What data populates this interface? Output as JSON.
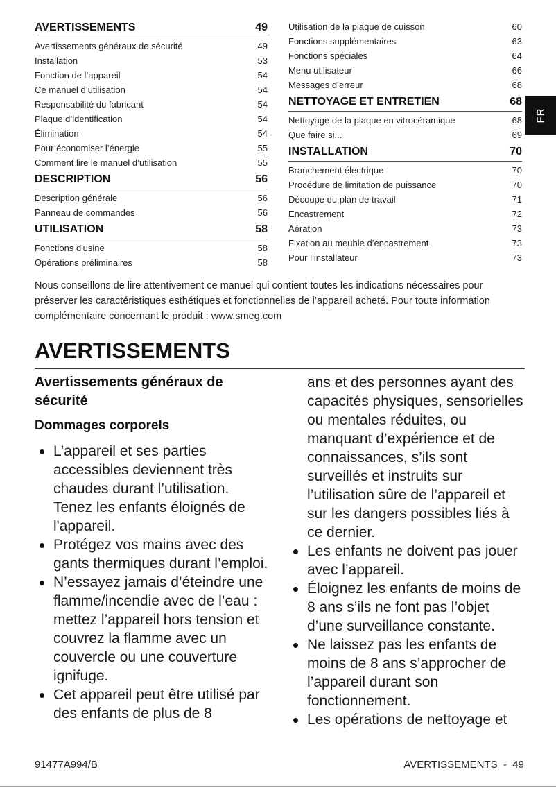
{
  "toc": {
    "left": [
      {
        "type": "head",
        "label": "AVERTISSEMENTS",
        "page": "49"
      },
      {
        "type": "row",
        "label": "Avertissements généraux de sécurité",
        "page": "49"
      },
      {
        "type": "row",
        "label": "Installation",
        "page": "53"
      },
      {
        "type": "row",
        "label": "Fonction de l’appareil",
        "page": "54"
      },
      {
        "type": "row",
        "label": "Ce manuel d’utilisation",
        "page": "54"
      },
      {
        "type": "row",
        "label": "Responsabilité du fabricant",
        "page": "54"
      },
      {
        "type": "row",
        "label": "Plaque d’identification",
        "page": "54"
      },
      {
        "type": "row",
        "label": "Élimination",
        "page": "54"
      },
      {
        "type": "row",
        "label": "Pour économiser l’énergie",
        "page": "55"
      },
      {
        "type": "row",
        "label": "Comment lire le manuel d’utilisation",
        "page": "55"
      },
      {
        "type": "head",
        "label": "DESCRIPTION",
        "page": "56"
      },
      {
        "type": "row",
        "label": "Description générale",
        "page": "56"
      },
      {
        "type": "row",
        "label": "Panneau de commandes",
        "page": "56"
      },
      {
        "type": "head",
        "label": "UTILISATION",
        "page": "58"
      },
      {
        "type": "row",
        "label": "Fonctions d'usine",
        "page": "58"
      },
      {
        "type": "row",
        "label": "Opérations préliminaires",
        "page": "58"
      }
    ],
    "right": [
      {
        "type": "row",
        "label": "Utilisation de la plaque de cuisson",
        "page": "60"
      },
      {
        "type": "row",
        "label": "Fonctions supplémentaires",
        "page": "63"
      },
      {
        "type": "row",
        "label": "Fonctions spéciales",
        "page": "64"
      },
      {
        "type": "row",
        "label": "Menu utilisateur",
        "page": "66"
      },
      {
        "type": "row",
        "label": "Messages d’erreur",
        "page": "68"
      },
      {
        "type": "head",
        "label": "NETTOYAGE ET ENTRETIEN",
        "page": "68"
      },
      {
        "type": "row",
        "label": "Nettoyage de la plaque en vitrocéramique",
        "page": "68"
      },
      {
        "type": "row",
        "label": "Que faire si...",
        "page": "69"
      },
      {
        "type": "head",
        "label": "INSTALLATION",
        "page": "70"
      },
      {
        "type": "row",
        "label": "Branchement électrique",
        "page": "70"
      },
      {
        "type": "row",
        "label": "Procédure de limitation de puissance",
        "page": "70"
      },
      {
        "type": "row",
        "label": "Découpe du plan de travail",
        "page": "71"
      },
      {
        "type": "row",
        "label": "Encastrement",
        "page": "72"
      },
      {
        "type": "row",
        "label": "Aération",
        "page": "73"
      },
      {
        "type": "row",
        "label": "Fixation au meuble d’encastrement",
        "page": "73"
      },
      {
        "type": "row",
        "label": "Pour l’installateur",
        "page": "73"
      }
    ]
  },
  "lang_tab": "FR",
  "intro": "Nous conseillons de lire attentivement ce manuel qui contient toutes les indications nécessaires pour préserver les caractéristiques esthétiques et fonctionnelles de l’appareil acheté. Pour toute information complémentaire concernant le produit : www.smeg.com",
  "section_title": "AVERTISSEMENTS",
  "subsection_title": "Avertissements généraux de sécurité",
  "subheading": "Dommages corporels",
  "bullets_left": [
    "L’appareil et ses parties accessibles deviennent très chaudes durant l’utilisation. Tenez les enfants éloignés de l'appareil.",
    "Protégez vos mains avec des gants thermiques durant l’emploi.",
    "N’essayez jamais d’éteindre une flamme/incendie avec de l’eau : mettez l’appareil hors tension et couvrez la flamme avec un couvercle ou une couverture ignifuge.",
    "Cet appareil peut être utilisé par des enfants de plus de 8"
  ],
  "continuation_right": "ans et des personnes ayant des capacités physiques, sensorielles ou mentales réduites, ou manquant d’expérience et de connaissances, s’ils sont surveillés et instruits sur l’utilisation sûre de l’appareil et sur les dangers possibles liés à ce dernier.",
  "bullets_right": [
    "Les enfants ne doivent pas jouer avec l’appareil.",
    "Éloignez les enfants de moins de 8 ans s’ils ne font pas l’objet d’une surveillance constante.",
    "Ne laissez pas les enfants de moins de 8 ans s’approcher de l’appareil durant son fonctionnement.",
    "Les opérations de nettoyage et"
  ],
  "footer": {
    "code": "91477A994/B",
    "page_label": "AVERTISSEMENTS  -  49"
  }
}
